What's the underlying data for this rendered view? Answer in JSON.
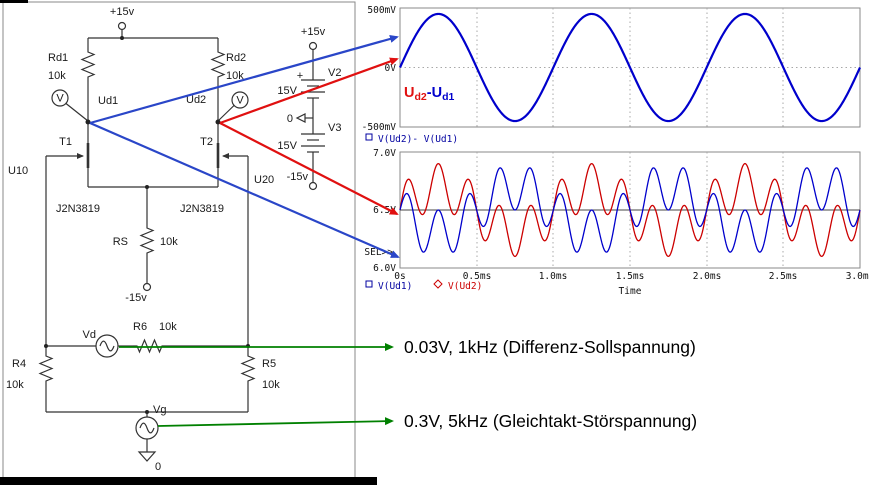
{
  "colors": {
    "trace_blue": "#0000cc",
    "trace_red": "#cc0000",
    "arrow_blue": "#2a46c8",
    "arrow_red": "#e01010",
    "arrow_green": "#008000",
    "plot_border": "#8a8a8a",
    "grid": "#a8a8a8"
  },
  "circuit": {
    "power": {
      "vplus_left": "+15v",
      "vplus_mid": "+15v",
      "plus_sign": "+",
      "zero_mid": "0",
      "vminus_mid": "-15v",
      "vminus_rs": "-15v",
      "gnd_zero": "0"
    },
    "batteries": {
      "v2": {
        "label": "V2",
        "value": "15V"
      },
      "v3": {
        "label": "V3",
        "value": "15V"
      }
    },
    "resistors": {
      "rd1": {
        "label": "Rd1",
        "value": "10k"
      },
      "rd2": {
        "label": "Rd2",
        "value": "10k"
      },
      "rs": {
        "label": "RS",
        "value": "10k"
      },
      "r4": {
        "label": "R4",
        "value": "10k"
      },
      "r5": {
        "label": "R5",
        "value": "10k"
      },
      "r6": {
        "label": "R6",
        "value": "10k"
      }
    },
    "transistors": {
      "t1": {
        "label": "T1",
        "model": "J2N3819"
      },
      "t2": {
        "label": "T2",
        "model": "J2N3819"
      }
    },
    "nodes": {
      "u10": "U10",
      "u20": "U20",
      "ud1": "Ud1",
      "ud2": "Ud2"
    },
    "sources": {
      "vd": "Vd",
      "vg": "Vg"
    },
    "probe_letter": "V"
  },
  "annotations": {
    "diff_source": "0.03V, 1kHz (Differenz-Sollspannung)",
    "cm_source": "0.3V, 5kHz (Gleichtakt-Störspannung)",
    "trace_label": {
      "u1": "U",
      "sub1": "d2",
      "u2": "-U",
      "sub2": "d1"
    }
  },
  "chart_data": [
    {
      "type": "line",
      "title": "Differential output voltage",
      "x_axis": {
        "unit": "ms",
        "min": 0,
        "max": 3
      },
      "y_axis": {
        "unit": "mV",
        "min": -500,
        "max": 500,
        "ticks": [
          "500mV",
          "0V",
          "-500mV"
        ]
      },
      "grid": true,
      "legend_position": "bottom-left",
      "legend": [
        {
          "label": "V(Ud2)- V(Ud1)",
          "marker": "square",
          "color": "#0000a0"
        }
      ],
      "series": [
        {
          "name": "V(Ud2)-V(Ud1)",
          "color": "#0000cc",
          "offset": 0,
          "components": [
            {
              "amplitude": 450,
              "freq_khz": 1
            }
          ]
        }
      ]
    },
    {
      "type": "line",
      "title": "Drain voltages",
      "sel_label": "SEL>>",
      "xlabel": "Time",
      "x_axis": {
        "unit": "ms",
        "min": 0,
        "max": 3,
        "ticks": [
          "0s",
          "0.5ms",
          "1.0ms",
          "1.5ms",
          "2.0ms",
          "2.5ms",
          "3.0ms"
        ]
      },
      "y_axis": {
        "unit": "V",
        "min": 6.0,
        "max": 7.0,
        "ticks": [
          "7.0V",
          "6.5V",
          "6.0V"
        ]
      },
      "grid": true,
      "legend_position": "bottom-left",
      "legend": [
        {
          "label": "V(Ud1)",
          "marker": "square",
          "color": "#0000a0"
        },
        {
          "label": "V(Ud2)",
          "marker": "diamond",
          "color": "#cc0000"
        }
      ],
      "series": [
        {
          "name": "V(Ud1)",
          "color": "#0000cc",
          "offset": 6.5,
          "components": [
            {
              "amplitude": -0.2,
              "freq_khz": 1
            },
            {
              "amplitude": 0.2,
              "freq_khz": 5
            }
          ]
        },
        {
          "name": "V(Ud2)",
          "color": "#cc0000",
          "offset": 6.5,
          "components": [
            {
              "amplitude": 0.2,
              "freq_khz": 1
            },
            {
              "amplitude": 0.2,
              "freq_khz": 5
            }
          ]
        }
      ]
    }
  ]
}
